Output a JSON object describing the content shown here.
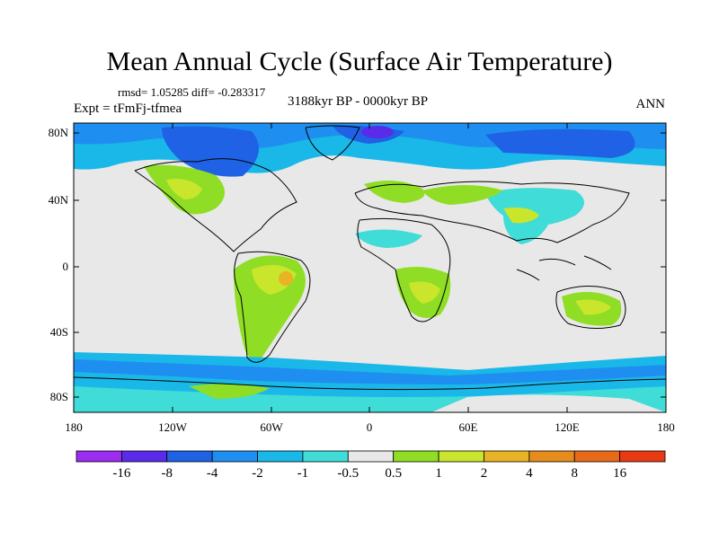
{
  "title": "Mean Annual Cycle (Surface Air Temperature)",
  "stats": "rmsd= 1.05285 diff= -0.283317",
  "experiment": "Expt = tFmFj-tfmea",
  "period": "3188kyr BP - 0000kyr BP",
  "season": "ANN",
  "axes": {
    "lat_ticks": [
      "80N",
      "40N",
      "0",
      "40S",
      "80S"
    ],
    "lon_ticks": [
      "180",
      "120W",
      "60W",
      "0",
      "60E",
      "120E",
      "180"
    ]
  },
  "colorbar": {
    "labels": [
      "-16",
      "-8",
      "-4",
      "-2",
      "-1",
      "-0.5",
      "0.5",
      "1",
      "2",
      "4",
      "8",
      "16"
    ],
    "colors": [
      "#9b2cf0",
      "#5a2be8",
      "#1f62e6",
      "#1e8ff0",
      "#1ab8e8",
      "#3fdcd8",
      "#e8e8e8",
      "#8fde25",
      "#c9e62c",
      "#e8b324",
      "#e68c1c",
      "#e86a18",
      "#e83b12"
    ]
  }
}
